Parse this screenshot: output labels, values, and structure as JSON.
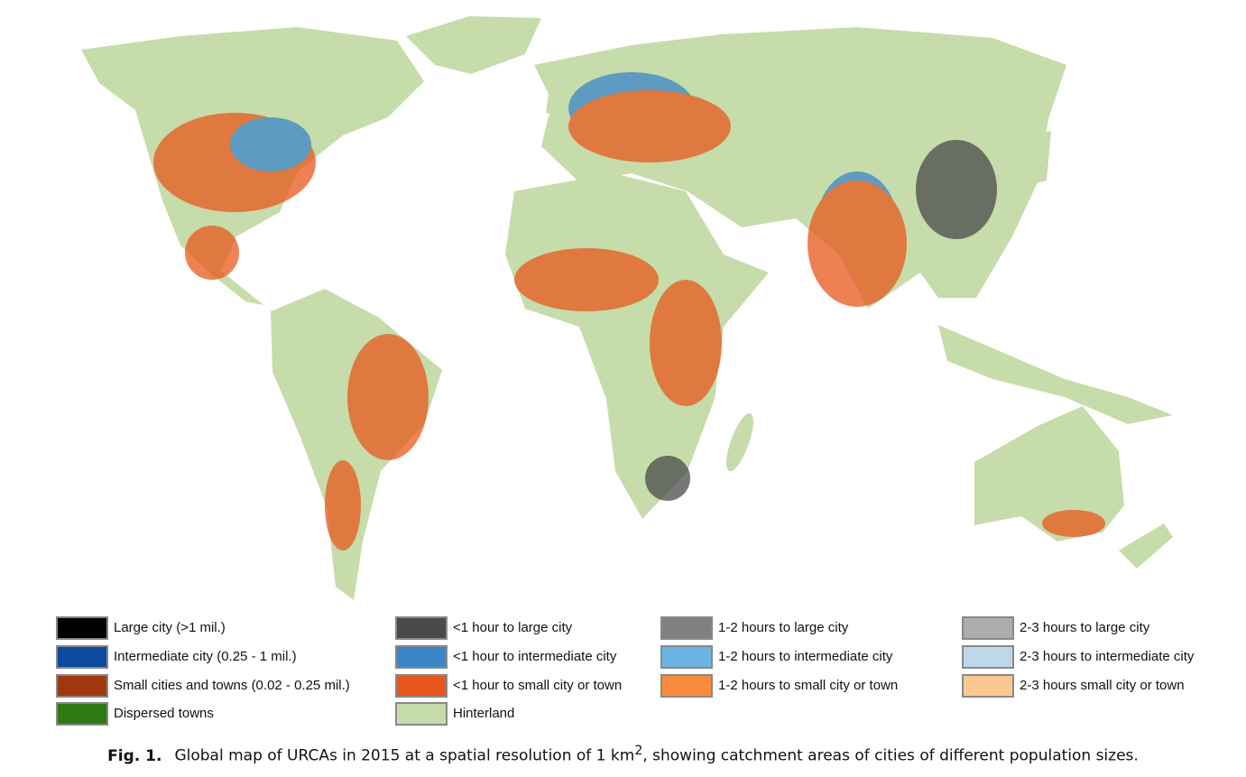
{
  "legend": [
    [
      {
        "label": "Large city (>1 mil.)",
        "color": "#000000"
      },
      {
        "label": "Intermediate city (0.25 - 1 mil.)",
        "color": "#0b4a9c"
      },
      {
        "label": "Small cities and towns (0.02 - 0.25 mil.)",
        "color": "#a2360c"
      },
      {
        "label": "Dispersed towns",
        "color": "#2f7a12"
      }
    ],
    [
      {
        "label": "<1 hour to large city",
        "color": "#4a4a4a"
      },
      {
        "label": "<1 hour to intermediate city",
        "color": "#3a86c8"
      },
      {
        "label": "<1 hour to small city or town",
        "color": "#e8581c"
      },
      {
        "label": "Hinterland",
        "color": "#c6dcaa"
      }
    ],
    [
      {
        "label": "1-2 hours to large city",
        "color": "#808080"
      },
      {
        "label": "1-2 hours to intermediate city",
        "color": "#6cb4e2"
      },
      {
        "label": "1-2 hours to small city or town",
        "color": "#f98c3c"
      }
    ],
    [
      {
        "label": "2-3 hours to large city",
        "color": "#acacac"
      },
      {
        "label": "2-3 hours to intermediate city",
        "color": "#bed8ea"
      },
      {
        "label": "2-3 hours small city or town",
        "color": "#fcc892"
      }
    ]
  ],
  "caption": {
    "label": "Fig. 1.",
    "text": "Global map of URCAs in 2015 at a spatial resolution of 1 km",
    "superscript": "2",
    "rest": ", showing catchment areas of cities of different population sizes."
  }
}
